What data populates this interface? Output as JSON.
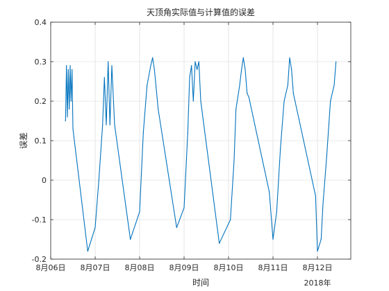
{
  "chart_data": {
    "type": "line",
    "title": "天顶角实际值与计算值的误差",
    "xlabel": "时间",
    "ylabel": "误差",
    "x_axis_secondary_label": "2018年",
    "xlim": [
      "2018-08-06",
      "2018-08-12 18:00"
    ],
    "ylim": [
      -0.2,
      0.4
    ],
    "y_ticks": [
      -0.2,
      -0.1,
      0,
      0.1,
      0.2,
      0.3,
      0.4
    ],
    "y_tick_labels": [
      "-0.2",
      "-0.1",
      "0",
      "0.1",
      "0.2",
      "0.3",
      "0.4"
    ],
    "x_ticks": [
      "2018-08-06",
      "2018-08-07",
      "2018-08-08",
      "2018-08-09",
      "2018-08-10",
      "2018-08-11",
      "2018-08-12"
    ],
    "x_tick_labels": [
      "8月06日",
      "8月07日",
      "8月08日",
      "8月09日",
      "8月10日",
      "8月11日",
      "8月12日"
    ],
    "grid": true,
    "line_color": "#0072BD",
    "series": [
      {
        "points": [
          [
            "2018-08-06 08:00",
            0.15
          ],
          [
            "2018-08-06 08:30",
            0.29
          ],
          [
            "2018-08-06 09:00",
            0.16
          ],
          [
            "2018-08-06 09:30",
            0.28
          ],
          [
            "2018-08-06 10:00",
            0.18
          ],
          [
            "2018-08-06 10:30",
            0.29
          ],
          [
            "2018-08-06 11:00",
            0.2
          ],
          [
            "2018-08-06 11:30",
            0.28
          ],
          [
            "2018-08-06 12:00",
            0.13
          ],
          [
            "2018-08-06 20:00",
            -0.18
          ],
          [
            "2018-08-07 00:00",
            -0.12
          ],
          [
            "2018-08-07 02:00",
            0.0
          ],
          [
            "2018-08-07 04:00",
            0.14
          ],
          [
            "2018-08-07 05:00",
            0.26
          ],
          [
            "2018-08-07 06:00",
            0.14
          ],
          [
            "2018-08-07 07:00",
            0.3
          ],
          [
            "2018-08-07 08:00",
            0.14
          ],
          [
            "2018-08-07 09:00",
            0.29
          ],
          [
            "2018-08-07 10:30",
            0.14
          ],
          [
            "2018-08-07 19:00",
            -0.15
          ],
          [
            "2018-08-08 00:00",
            -0.08
          ],
          [
            "2018-08-08 02:00",
            0.12
          ],
          [
            "2018-08-08 04:00",
            0.24
          ],
          [
            "2018-08-08 06:00",
            0.29
          ],
          [
            "2018-08-08 07:00",
            0.31
          ],
          [
            "2018-08-08 08:00",
            0.28
          ],
          [
            "2018-08-08 09:00",
            0.23
          ],
          [
            "2018-08-08 10:00",
            0.18
          ],
          [
            "2018-08-08 20:00",
            -0.12
          ],
          [
            "2018-08-09 00:00",
            -0.07
          ],
          [
            "2018-08-09 02:00",
            0.12
          ],
          [
            "2018-08-09 03:00",
            0.26
          ],
          [
            "2018-08-09 04:00",
            0.29
          ],
          [
            "2018-08-09 05:00",
            0.2
          ],
          [
            "2018-08-09 06:00",
            0.3
          ],
          [
            "2018-08-09 07:00",
            0.28
          ],
          [
            "2018-08-09 08:00",
            0.3
          ],
          [
            "2018-08-09 09:00",
            0.2
          ],
          [
            "2018-08-09 19:00",
            -0.16
          ],
          [
            "2018-08-10 01:00",
            -0.1
          ],
          [
            "2018-08-10 03:00",
            0.05
          ],
          [
            "2018-08-10 04:00",
            0.18
          ],
          [
            "2018-08-10 06:00",
            0.24
          ],
          [
            "2018-08-10 07:00",
            0.28
          ],
          [
            "2018-08-10 08:00",
            0.31
          ],
          [
            "2018-08-10 09:00",
            0.28
          ],
          [
            "2018-08-10 10:00",
            0.22
          ],
          [
            "2018-08-10 11:00",
            0.21
          ],
          [
            "2018-08-10 22:00",
            -0.03
          ],
          [
            "2018-08-11 00:00",
            -0.15
          ],
          [
            "2018-08-11 02:00",
            -0.08
          ],
          [
            "2018-08-11 04:00",
            0.08
          ],
          [
            "2018-08-11 06:00",
            0.2
          ],
          [
            "2018-08-11 08:00",
            0.24
          ],
          [
            "2018-08-11 09:00",
            0.31
          ],
          [
            "2018-08-11 10:00",
            0.28
          ],
          [
            "2018-08-11 11:00",
            0.22
          ],
          [
            "2018-08-11 23:00",
            -0.04
          ],
          [
            "2018-08-12 00:00",
            -0.18
          ],
          [
            "2018-08-12 02:00",
            -0.15
          ],
          [
            "2018-08-12 03:00",
            -0.06
          ],
          [
            "2018-08-12 05:00",
            0.06
          ],
          [
            "2018-08-12 07:00",
            0.2
          ],
          [
            "2018-08-12 09:00",
            0.24
          ],
          [
            "2018-08-12 10:00",
            0.3
          ]
        ]
      }
    ]
  }
}
